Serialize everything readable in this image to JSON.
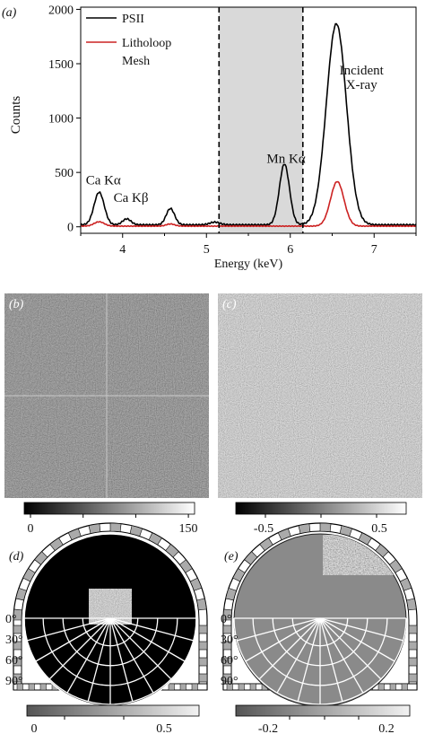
{
  "panels": {
    "a": "(a)",
    "b": "(b)",
    "c": "(c)",
    "d": "(d)",
    "e": "(e)"
  },
  "chart_data": {
    "type": "line",
    "xlabel": "Energy (keV)",
    "ylabel": "Counts",
    "xlim": [
      3.5,
      7.5
    ],
    "ylim": [
      -60,
      2020
    ],
    "x_ticks": [
      4,
      5,
      6,
      7
    ],
    "y_ticks": [
      0,
      500,
      1000,
      1500,
      2000
    ],
    "grid": false,
    "legend_position": "top-left",
    "shaded_region": {
      "x": [
        5.15,
        6.15
      ],
      "color": "#d9d9d9"
    },
    "series": [
      {
        "name": "PSII",
        "color": "#000000",
        "peaks": [
          [
            3.72,
            300,
            0.06
          ],
          [
            4.05,
            55,
            0.05
          ],
          [
            4.57,
            150,
            0.05
          ],
          [
            5.1,
            25,
            0.06
          ],
          [
            5.93,
            560,
            0.06
          ],
          [
            6.55,
            1850,
            0.12
          ]
        ],
        "baseline": 18
      },
      {
        "name": "Litholoop Mesh",
        "color": "#cc2222",
        "peaks": [
          [
            3.72,
            40,
            0.06
          ],
          [
            4.57,
            20,
            0.05
          ],
          [
            6.56,
            410,
            0.08
          ]
        ],
        "baseline": 6
      }
    ],
    "annotations": [
      {
        "text": "Ca Kα",
        "x": 3.77,
        "y": 390
      },
      {
        "text": "Ca Kβ",
        "x": 4.1,
        "y": 230
      },
      {
        "text": "Mn Kα",
        "x": 5.95,
        "y": 590
      },
      {
        "text": "Incident",
        "x": 6.85,
        "y": 1400
      },
      {
        "text": "X-ray",
        "x": 6.85,
        "y": 1270
      }
    ]
  },
  "colorbars": {
    "b": {
      "ticks": [
        "0",
        "50",
        "100",
        "150"
      ],
      "label_ticks": [
        "0",
        "150"
      ]
    },
    "c": {
      "label_ticks": [
        "-0.5",
        "0.5"
      ]
    },
    "d": {
      "label_ticks": [
        "0",
        "0.5"
      ]
    },
    "e": {
      "label_ticks": [
        "-0.2",
        "0.2"
      ]
    }
  },
  "polar": {
    "angle_labels": [
      "0°",
      "30°",
      "60°",
      "90°"
    ]
  }
}
